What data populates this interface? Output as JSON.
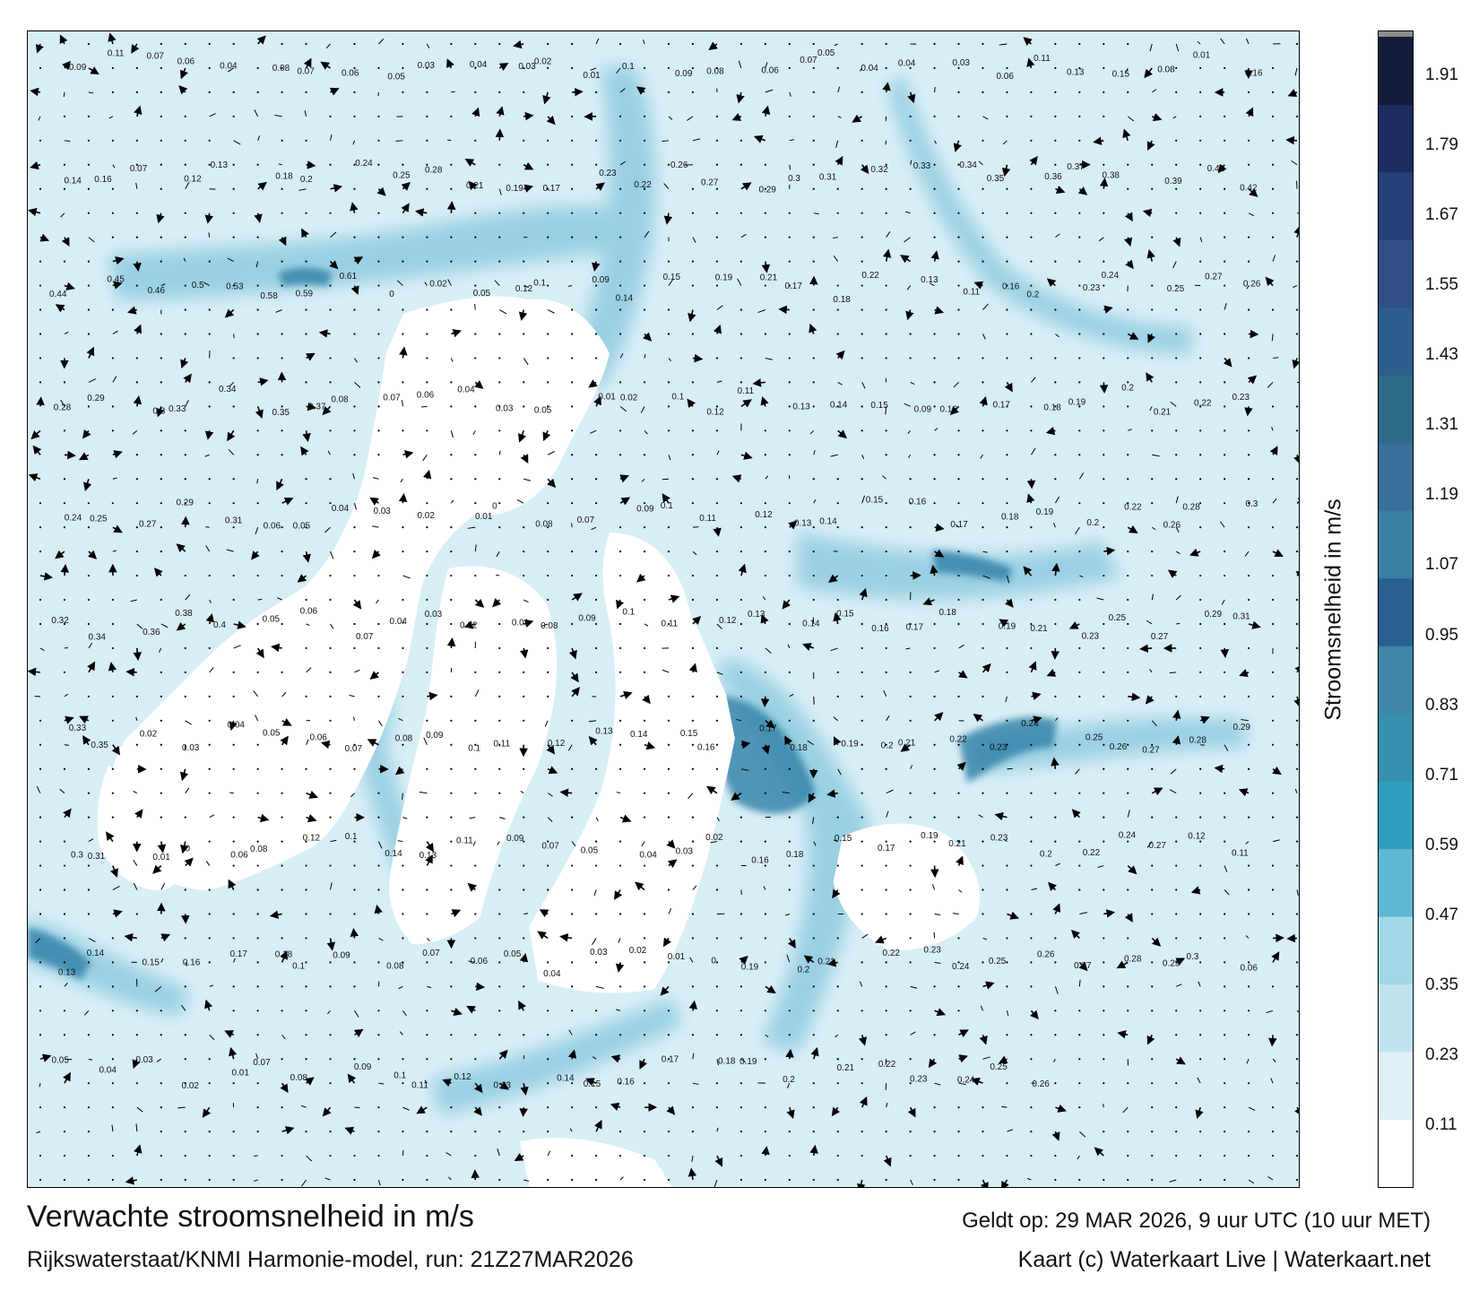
{
  "footer": {
    "title": "Verwachte stroomsnelheid in m/s",
    "valid_time": "Geldt op: 29 MAR 2026, 9 uur UTC (10 uur MET)",
    "model": "Rijkswaterstaat/KNMI Harmonie-model, run: 21Z27MAR2026",
    "credit": "Kaart (c) Waterkaart Live | Waterkaart.net"
  },
  "colorbar": {
    "title": "Stroomsnelheid in m/s",
    "ticks": [
      "0.11",
      "0.23",
      "0.35",
      "0.47",
      "0.59",
      "0.71",
      "0.83",
      "0.95",
      "1.07",
      "1.19",
      "1.31",
      "1.43",
      "1.55",
      "1.67",
      "1.79",
      "1.91"
    ],
    "band_colors": [
      "#ffffff",
      "#dff1f7",
      "#c0e4ef",
      "#a2d7e8",
      "#5fb8d3",
      "#2e9fbf",
      "#3590ae",
      "#3f87a6",
      "#2a5f92",
      "#3a7fa1",
      "#3a6f99",
      "#2c6a86",
      "#2c5d8d",
      "#2f4f86",
      "#26407a",
      "#1d2c5e",
      "#141c3c"
    ],
    "top_color": "#8c8c8c"
  },
  "map": {
    "land_color": "#ffffff",
    "sea_color": "#d8eef6",
    "channel_color": "#8fcbe0",
    "deep_channel_color": "#2d7fa6",
    "arrow_color": "#000000",
    "speed_labels": [
      {
        "t": "0.09"
      },
      {
        "t": "0.11"
      },
      {
        "t": "0.07"
      },
      {
        "t": "0.06"
      },
      {
        "t": "0.04"
      },
      {
        "t": "0.08"
      },
      {
        "t": "0.07"
      },
      {
        "t": "0.06"
      },
      {
        "t": "0.05"
      },
      {
        "t": "0.03"
      },
      {
        "t": "0.04"
      },
      {
        "t": "0.03"
      },
      {
        "t": "0.02"
      },
      {
        "t": "0.01"
      },
      {
        "t": "0.1"
      },
      {
        "t": "0.09"
      },
      {
        "t": "0.08"
      },
      {
        "t": "0.06"
      },
      {
        "t": "0.07"
      },
      {
        "t": "0.05"
      },
      {
        "t": "0.04"
      },
      {
        "t": "0.04"
      },
      {
        "t": "0.03"
      },
      {
        "t": "0.06"
      },
      {
        "t": "0.11"
      },
      {
        "t": "0.13"
      },
      {
        "t": "0.15"
      },
      {
        "t": "0.08"
      },
      {
        "t": "0.01"
      },
      {
        "t": "0.16"
      },
      {
        "t": "0.14"
      },
      {
        "t": "0.16"
      },
      {
        "t": "0.07"
      },
      {
        "t": "0.12"
      },
      {
        "t": "0.13"
      },
      {
        "t": "0.18"
      },
      {
        "t": "0.2"
      },
      {
        "t": "0.24"
      },
      {
        "t": "0.25"
      },
      {
        "t": "0.28"
      },
      {
        "t": "0.21"
      },
      {
        "t": "0.19"
      },
      {
        "t": "0.17"
      },
      {
        "t": "0.23"
      },
      {
        "t": "0.22"
      },
      {
        "t": "0.26"
      },
      {
        "t": "0.27"
      },
      {
        "t": "0.29"
      },
      {
        "t": "0.3"
      },
      {
        "t": "0.31"
      },
      {
        "t": "0.32"
      },
      {
        "t": "0.33"
      },
      {
        "t": "0.34"
      },
      {
        "t": "0.35"
      },
      {
        "t": "0.36"
      },
      {
        "t": "0.37"
      },
      {
        "t": "0.38"
      },
      {
        "t": "0.39"
      },
      {
        "t": "0.41"
      },
      {
        "t": "0.42"
      },
      {
        "t": "0.44"
      },
      {
        "t": "0.45"
      },
      {
        "t": "0.46"
      },
      {
        "t": "0.5"
      },
      {
        "t": "0.53"
      },
      {
        "t": "0.58"
      },
      {
        "t": "0.59"
      },
      {
        "t": "0.61"
      },
      {
        "t": "0"
      },
      {
        "t": "0.02"
      },
      {
        "t": "0.05"
      },
      {
        "t": "0.12"
      },
      {
        "t": "0.1"
      },
      {
        "t": "0.09"
      },
      {
        "t": "0.14"
      },
      {
        "t": "0.15"
      },
      {
        "t": "0.19"
      },
      {
        "t": "0.21"
      },
      {
        "t": "0.17"
      },
      {
        "t": "0.18"
      },
      {
        "t": "0.22"
      },
      {
        "t": "0.13"
      },
      {
        "t": "0.11"
      },
      {
        "t": "0.16"
      },
      {
        "t": "0.2"
      },
      {
        "t": "0.23"
      },
      {
        "t": "0.24"
      },
      {
        "t": "0.25"
      },
      {
        "t": "0.27"
      },
      {
        "t": "0.26"
      },
      {
        "t": "0.28"
      },
      {
        "t": "0.29"
      },
      {
        "t": "0.3"
      },
      {
        "t": "0.33"
      },
      {
        "t": "0.34"
      },
      {
        "t": "0.35"
      },
      {
        "t": "0.37"
      },
      {
        "t": "0.08"
      },
      {
        "t": "0.07"
      },
      {
        "t": "0.06"
      },
      {
        "t": "0.04"
      },
      {
        "t": "0.03"
      },
      {
        "t": "0.05"
      },
      {
        "t": "0.01"
      },
      {
        "t": "0.02"
      },
      {
        "t": "0.1"
      },
      {
        "t": "0.12"
      },
      {
        "t": "0.11"
      },
      {
        "t": "0.13"
      },
      {
        "t": "0.14"
      },
      {
        "t": "0.15"
      },
      {
        "t": "0.09"
      },
      {
        "t": "0.16"
      },
      {
        "t": "0.17"
      },
      {
        "t": "0.18"
      },
      {
        "t": "0.19"
      },
      {
        "t": "0.2"
      },
      {
        "t": "0.21"
      },
      {
        "t": "0.22"
      },
      {
        "t": "0.23"
      },
      {
        "t": "0.24"
      },
      {
        "t": "0.25"
      },
      {
        "t": "0.27"
      },
      {
        "t": "0.29"
      },
      {
        "t": "0.31"
      },
      {
        "t": "0.06"
      },
      {
        "t": "0.05"
      },
      {
        "t": "0.04"
      },
      {
        "t": "0.03"
      },
      {
        "t": "0.02"
      },
      {
        "t": "0.01"
      },
      {
        "t": "0"
      },
      {
        "t": "0.08"
      },
      {
        "t": "0.07"
      },
      {
        "t": "0.09"
      },
      {
        "t": "0.1"
      },
      {
        "t": "0.11"
      },
      {
        "t": "0.12"
      },
      {
        "t": "0.13"
      },
      {
        "t": "0.14"
      },
      {
        "t": "0.15"
      },
      {
        "t": "0.16"
      },
      {
        "t": "0.17"
      },
      {
        "t": "0.18"
      },
      {
        "t": "0.19"
      },
      {
        "t": "0.2"
      },
      {
        "t": "0.22"
      },
      {
        "t": "0.26"
      },
      {
        "t": "0.28"
      },
      {
        "t": "0.3"
      },
      {
        "t": "0.32"
      },
      {
        "t": "0.34"
      },
      {
        "t": "0.36"
      },
      {
        "t": "0.38"
      },
      {
        "t": "0.4"
      },
      {
        "t": "0.05"
      },
      {
        "t": "0.06"
      },
      {
        "t": "0.07"
      },
      {
        "t": "0.04"
      },
      {
        "t": "0.03"
      },
      {
        "t": "0.02"
      },
      {
        "t": "0.01"
      },
      {
        "t": "0.08"
      },
      {
        "t": "0.09"
      },
      {
        "t": "0.1"
      },
      {
        "t": "0.11"
      },
      {
        "t": "0.12"
      },
      {
        "t": "0.13"
      },
      {
        "t": "0.14"
      },
      {
        "t": "0.15"
      },
      {
        "t": "0.16"
      },
      {
        "t": "0.17"
      },
      {
        "t": "0.18"
      },
      {
        "t": "0.19"
      },
      {
        "t": "0.21"
      },
      {
        "t": "0.23"
      },
      {
        "t": "0.25"
      },
      {
        "t": "0.27"
      },
      {
        "t": "0.29"
      },
      {
        "t": "0.31"
      },
      {
        "t": "0.33"
      },
      {
        "t": "0.35"
      },
      {
        "t": "0.02"
      },
      {
        "t": "0.03"
      },
      {
        "t": "0.04"
      },
      {
        "t": "0.05"
      },
      {
        "t": "0.06"
      },
      {
        "t": "0.07"
      },
      {
        "t": "0.08"
      },
      {
        "t": "0.09"
      },
      {
        "t": "0.1"
      },
      {
        "t": "0.11"
      },
      {
        "t": "0.12"
      },
      {
        "t": "0.13"
      },
      {
        "t": "0.14"
      },
      {
        "t": "0.15"
      },
      {
        "t": "0.16"
      },
      {
        "t": "0.17"
      },
      {
        "t": "0.18"
      },
      {
        "t": "0.19"
      },
      {
        "t": "0.2"
      },
      {
        "t": "0.21"
      },
      {
        "t": "0.22"
      },
      {
        "t": "0.23"
      },
      {
        "t": "0.24"
      },
      {
        "t": "0.25"
      },
      {
        "t": "0.26"
      },
      {
        "t": "0.27"
      },
      {
        "t": "0.28"
      },
      {
        "t": "0.29"
      },
      {
        "t": "0.3"
      },
      {
        "t": "0.31"
      },
      {
        "t": "0.01"
      },
      {
        "t": "0"
      },
      {
        "t": "0.06"
      },
      {
        "t": "0.08"
      },
      {
        "t": "0.12"
      },
      {
        "t": "0.1"
      },
      {
        "t": "0.14"
      },
      {
        "t": "0.13"
      },
      {
        "t": "0.11"
      },
      {
        "t": "0.09"
      },
      {
        "t": "0.07"
      },
      {
        "t": "0.05"
      },
      {
        "t": "0.04"
      },
      {
        "t": "0.03"
      },
      {
        "t": "0.02"
      },
      {
        "t": "0.16"
      },
      {
        "t": "0.18"
      },
      {
        "t": "0.15"
      },
      {
        "t": "0.17"
      },
      {
        "t": "0.19"
      },
      {
        "t": "0.21"
      },
      {
        "t": "0.23"
      },
      {
        "t": "0.2"
      },
      {
        "t": "0.22"
      },
      {
        "t": "0.24"
      },
      {
        "t": "0.27"
      },
      {
        "t": "0.12"
      },
      {
        "t": "0.11"
      },
      {
        "t": "0.13"
      },
      {
        "t": "0.14"
      },
      {
        "t": "0.15"
      },
      {
        "t": "0.16"
      },
      {
        "t": "0.17"
      },
      {
        "t": "0.18"
      },
      {
        "t": "0.1"
      },
      {
        "t": "0.09"
      },
      {
        "t": "0.08"
      },
      {
        "t": "0.07"
      },
      {
        "t": "0.06"
      },
      {
        "t": "0.05"
      },
      {
        "t": "0.04"
      },
      {
        "t": "0.03"
      },
      {
        "t": "0.02"
      },
      {
        "t": "0.01"
      },
      {
        "t": "0"
      },
      {
        "t": "0.19"
      },
      {
        "t": "0.2"
      },
      {
        "t": "0.21"
      },
      {
        "t": "0.22"
      },
      {
        "t": "0.23"
      },
      {
        "t": "0.24"
      },
      {
        "t": "0.25"
      },
      {
        "t": "0.26"
      },
      {
        "t": "0.27"
      },
      {
        "t": "0.28"
      },
      {
        "t": "0.29"
      },
      {
        "t": "0.3"
      },
      {
        "t": "0.06"
      },
      {
        "t": "0.05"
      },
      {
        "t": "0.04"
      },
      {
        "t": "0.03"
      },
      {
        "t": "0.02"
      },
      {
        "t": "0.01"
      },
      {
        "t": "0.07"
      },
      {
        "t": "0.08"
      },
      {
        "t": "0.09"
      },
      {
        "t": "0.1"
      },
      {
        "t": "0.11"
      },
      {
        "t": "0.12"
      },
      {
        "t": "0.13"
      },
      {
        "t": "0.14"
      },
      {
        "t": "0.15"
      },
      {
        "t": "0.16"
      },
      {
        "t": "0.17"
      },
      {
        "t": "0.18"
      },
      {
        "t": "0.19"
      },
      {
        "t": "0.2"
      },
      {
        "t": "0.21"
      },
      {
        "t": "0.22"
      },
      {
        "t": "0.23"
      },
      {
        "t": "0.24"
      },
      {
        "t": "0.25"
      },
      {
        "t": "0.26"
      }
    ]
  }
}
